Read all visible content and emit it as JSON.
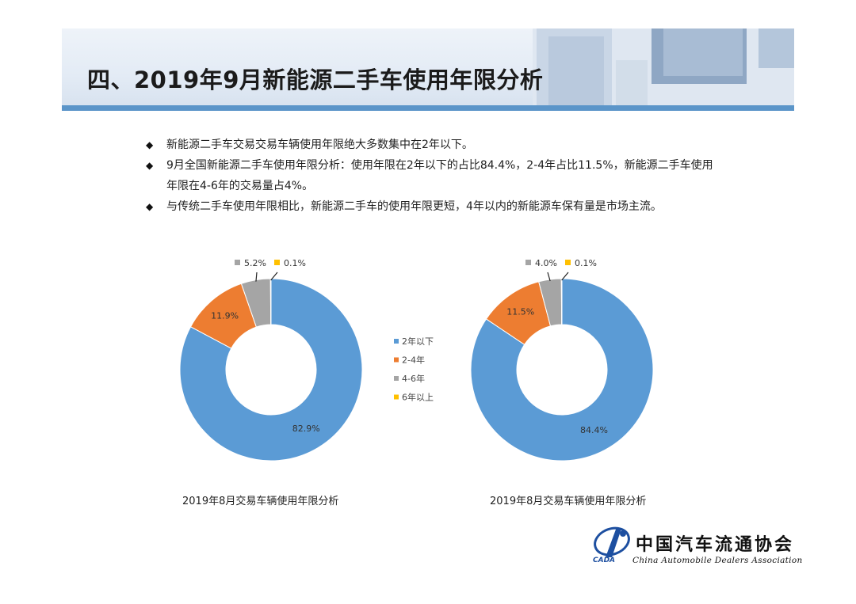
{
  "page": {
    "title": "四、2019年9月新能源二手车使用年限分析"
  },
  "bullets": [
    {
      "text": "新能源二手车交易交易车辆使用年限绝大多数集中在2年以下。"
    },
    {
      "text": "9月全国新能源二手车使用年限分析：使用年限在2年以下的占比84.4%，2-4年占比11.5%，新能源二手车使用年限在4-6年的交易量占4%。"
    },
    {
      "text": "与传统二手车使用年限相比，新能源二手车的使用年限更短，4年以内的新能源车保有量是市场主流。"
    }
  ],
  "bullet_icon": "diamond-icon",
  "legend": {
    "items": [
      {
        "label": "2年以下",
        "color": "#5b9bd5"
      },
      {
        "label": "2-4年",
        "color": "#ed7d31"
      },
      {
        "label": "4-6年",
        "color": "#a5a5a5"
      },
      {
        "label": "6年以上",
        "color": "#ffc000"
      }
    ]
  },
  "chart_data": [
    {
      "type": "pie",
      "subtype": "donut",
      "title": "2019年8月交易车辆使用年限分析",
      "categories": [
        "2年以下",
        "2-4年",
        "4-6年",
        "6年以上"
      ],
      "values": [
        82.9,
        11.9,
        5.2,
        0.1
      ],
      "value_labels": [
        "82.9%",
        "11.9%",
        "5.2%",
        "0.1%"
      ],
      "colors": [
        "#5b9bd5",
        "#ed7d31",
        "#a5a5a5",
        "#ffc000"
      ]
    },
    {
      "type": "pie",
      "subtype": "donut",
      "title": "2019年8月交易车辆使用年限分析",
      "categories": [
        "2年以下",
        "2-4年",
        "4-6年",
        "6年以上"
      ],
      "values": [
        84.4,
        11.5,
        4.0,
        0.1
      ],
      "value_labels": [
        "84.4%",
        "11.5%",
        "4.0%",
        "0.1%"
      ],
      "colors": [
        "#5b9bd5",
        "#ed7d31",
        "#a5a5a5",
        "#ffc000"
      ]
    }
  ],
  "logo": {
    "name_cn": "中国汽车流通协会",
    "name_en": "China Automobile Dealers Association",
    "abbr": "CADA"
  }
}
